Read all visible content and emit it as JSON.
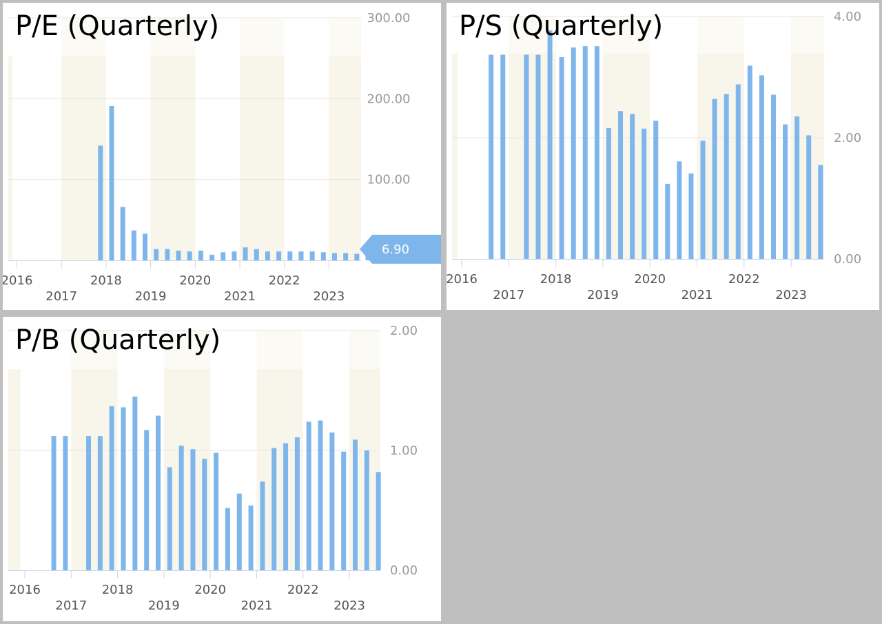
{
  "colors": {
    "bar": "#7eb6ec",
    "band": "#f8f5eb",
    "grid": "#e6e6e6",
    "axis": "#ccd6eb",
    "callout": "#7eb6ec"
  },
  "chart_data": [
    {
      "type": "bar",
      "title": "P/E (Quarterly)",
      "ylim": [
        0,
        300
      ],
      "y_ticks": [
        "300.00",
        "200.00",
        "100.00"
      ],
      "x_tick_labels": [
        "2016",
        "2017",
        "2018",
        "2019",
        "2020",
        "2021",
        "2022",
        "2023"
      ],
      "x": [
        "2017Q4",
        "2018Q1",
        "2018Q2",
        "2018Q3",
        "2018Q4",
        "2019Q1",
        "2019Q2",
        "2019Q3",
        "2019Q4",
        "2020Q1",
        "2020Q2",
        "2020Q3",
        "2020Q4",
        "2021Q1",
        "2021Q2",
        "2021Q3",
        "2021Q4",
        "2022Q1",
        "2022Q2",
        "2022Q3",
        "2022Q4",
        "2023Q1",
        "2023Q2",
        "2023Q3",
        "2023Q4"
      ],
      "values": [
        142,
        191,
        66,
        37,
        33,
        14,
        14,
        12,
        11,
        12,
        7,
        10,
        11,
        16,
        14,
        11,
        11,
        11,
        11,
        11,
        10,
        9,
        9,
        8,
        6.9
      ],
      "current_label": "6.90",
      "grid": true,
      "y_axis_side": "right"
    },
    {
      "type": "bar",
      "title": "P/S (Quarterly)",
      "ylim": [
        0,
        4
      ],
      "y_ticks": [
        "4.00",
        "2.00",
        "0.00"
      ],
      "x_tick_labels": [
        "2016",
        "2017",
        "2018",
        "2019",
        "2020",
        "2021",
        "2022",
        "2023"
      ],
      "x": [
        "2016Q3",
        "2016Q4",
        "2017Q2",
        "2017Q3",
        "2017Q4",
        "2018Q1",
        "2018Q2",
        "2018Q3",
        "2018Q4",
        "2019Q1",
        "2019Q2",
        "2019Q3",
        "2019Q4",
        "2020Q1",
        "2020Q2",
        "2020Q3",
        "2020Q4",
        "2021Q1",
        "2021Q2",
        "2021Q3",
        "2021Q4",
        "2022Q1",
        "2022Q2",
        "2022Q3",
        "2022Q4",
        "2023Q1",
        "2023Q2",
        "2023Q3"
      ],
      "values": [
        3.37,
        3.37,
        3.37,
        3.37,
        3.77,
        3.33,
        3.49,
        3.51,
        3.51,
        2.16,
        2.44,
        2.39,
        2.15,
        2.28,
        1.24,
        1.61,
        1.41,
        1.95,
        2.64,
        2.72,
        2.88,
        3.19,
        3.03,
        2.71,
        2.22,
        2.35,
        2.04,
        1.55
      ],
      "grid": true,
      "y_axis_side": "right"
    },
    {
      "type": "bar",
      "title": "P/B (Quarterly)",
      "ylim": [
        0,
        2
      ],
      "y_ticks": [
        "2.00",
        "1.00",
        "0.00"
      ],
      "x_tick_labels": [
        "2016",
        "2017",
        "2018",
        "2019",
        "2020",
        "2021",
        "2022",
        "2023"
      ],
      "x": [
        "2016Q3",
        "2016Q4",
        "2017Q2",
        "2017Q3",
        "2017Q4",
        "2018Q1",
        "2018Q2",
        "2018Q3",
        "2018Q4",
        "2019Q1",
        "2019Q2",
        "2019Q3",
        "2019Q4",
        "2020Q1",
        "2020Q2",
        "2020Q3",
        "2020Q4",
        "2021Q1",
        "2021Q2",
        "2021Q3",
        "2021Q4",
        "2022Q1",
        "2022Q2",
        "2022Q3",
        "2022Q4",
        "2023Q1",
        "2023Q2",
        "2023Q3"
      ],
      "values": [
        1.12,
        1.12,
        1.12,
        1.12,
        1.37,
        1.36,
        1.45,
        1.17,
        1.29,
        0.86,
        1.04,
        1.01,
        0.93,
        0.98,
        0.52,
        0.64,
        0.54,
        0.74,
        1.02,
        1.06,
        1.11,
        1.24,
        1.25,
        1.15,
        0.99,
        1.09,
        1.0,
        0.82
      ],
      "grid": true,
      "y_axis_side": "right"
    }
  ]
}
